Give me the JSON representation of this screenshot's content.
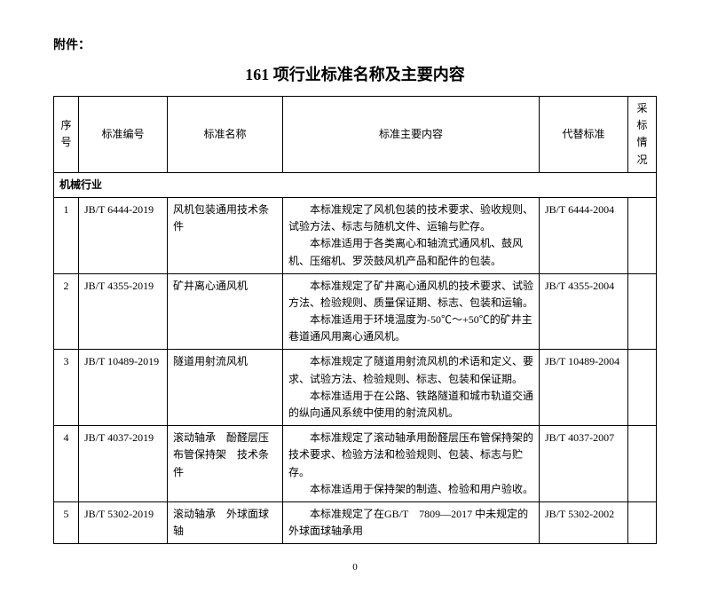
{
  "attachment_label": "附件：",
  "main_title": "161 项行业标准名称及主要内容",
  "headers": {
    "index": "序号",
    "code": "标准编号",
    "name": "标准名称",
    "desc": "标准主要内容",
    "replace": "代替标准",
    "adopt": "采标情况"
  },
  "section_title": "机械行业",
  "rows": [
    {
      "index": "1",
      "code": "JB/T 6444-2019",
      "name": "风机包装通用技术条件",
      "desc_p1": "本标准规定了风机包装的技术要求、验收规则、试验方法、标志与随机文件、运输与贮存。",
      "desc_p2": "本标准适用于各类离心和轴流式通风机、鼓风机、压缩机、罗茨鼓风机产品和配件的包装。",
      "replace": "JB/T 6444-2004",
      "adopt": ""
    },
    {
      "index": "2",
      "code": "JB/T 4355-2019",
      "name": "矿井离心通风机",
      "desc_p1": "本标准规定了矿井离心通风机的技术要求、试验方法、检验规则、质量保证期、标志、包装和运输。",
      "desc_p2": "本标准适用于环境温度为-50℃～+50℃的矿井主巷道通风用离心通风机。",
      "replace": "JB/T 4355-2004",
      "adopt": ""
    },
    {
      "index": "3",
      "code": "JB/T 10489-2019",
      "name": "隧道用射流风机",
      "desc_p1": "本标准规定了隧道用射流风机的术语和定义、要求、试验方法、检验规则、标志、包装和保证期。",
      "desc_p2": "本标准适用于在公路、铁路隧道和城市轨道交通的纵向通风系统中使用的射流风机。",
      "replace": "JB/T 10489-2004",
      "adopt": ""
    },
    {
      "index": "4",
      "code": "JB/T 4037-2019",
      "name": "滚动轴承　酚醛层压布管保持架　技术条件",
      "desc_p1": "本标准规定了滚动轴承用酚醛层压布管保持架的技术要求、检验方法和检验规则、包装、标志与贮存。",
      "desc_p2": "本标准适用于保持架的制造、检验和用户验收。",
      "replace": "JB/T 4037-2007",
      "adopt": ""
    },
    {
      "index": "5",
      "code": "JB/T 5302-2019",
      "name": "滚动轴承　外球面球轴",
      "desc_p1": "本标准规定了在GB/T　7809—2017 中未规定的外球面球轴承用",
      "desc_p2": "",
      "replace": "JB/T 5302-2002",
      "adopt": ""
    }
  ],
  "page_number": "0"
}
